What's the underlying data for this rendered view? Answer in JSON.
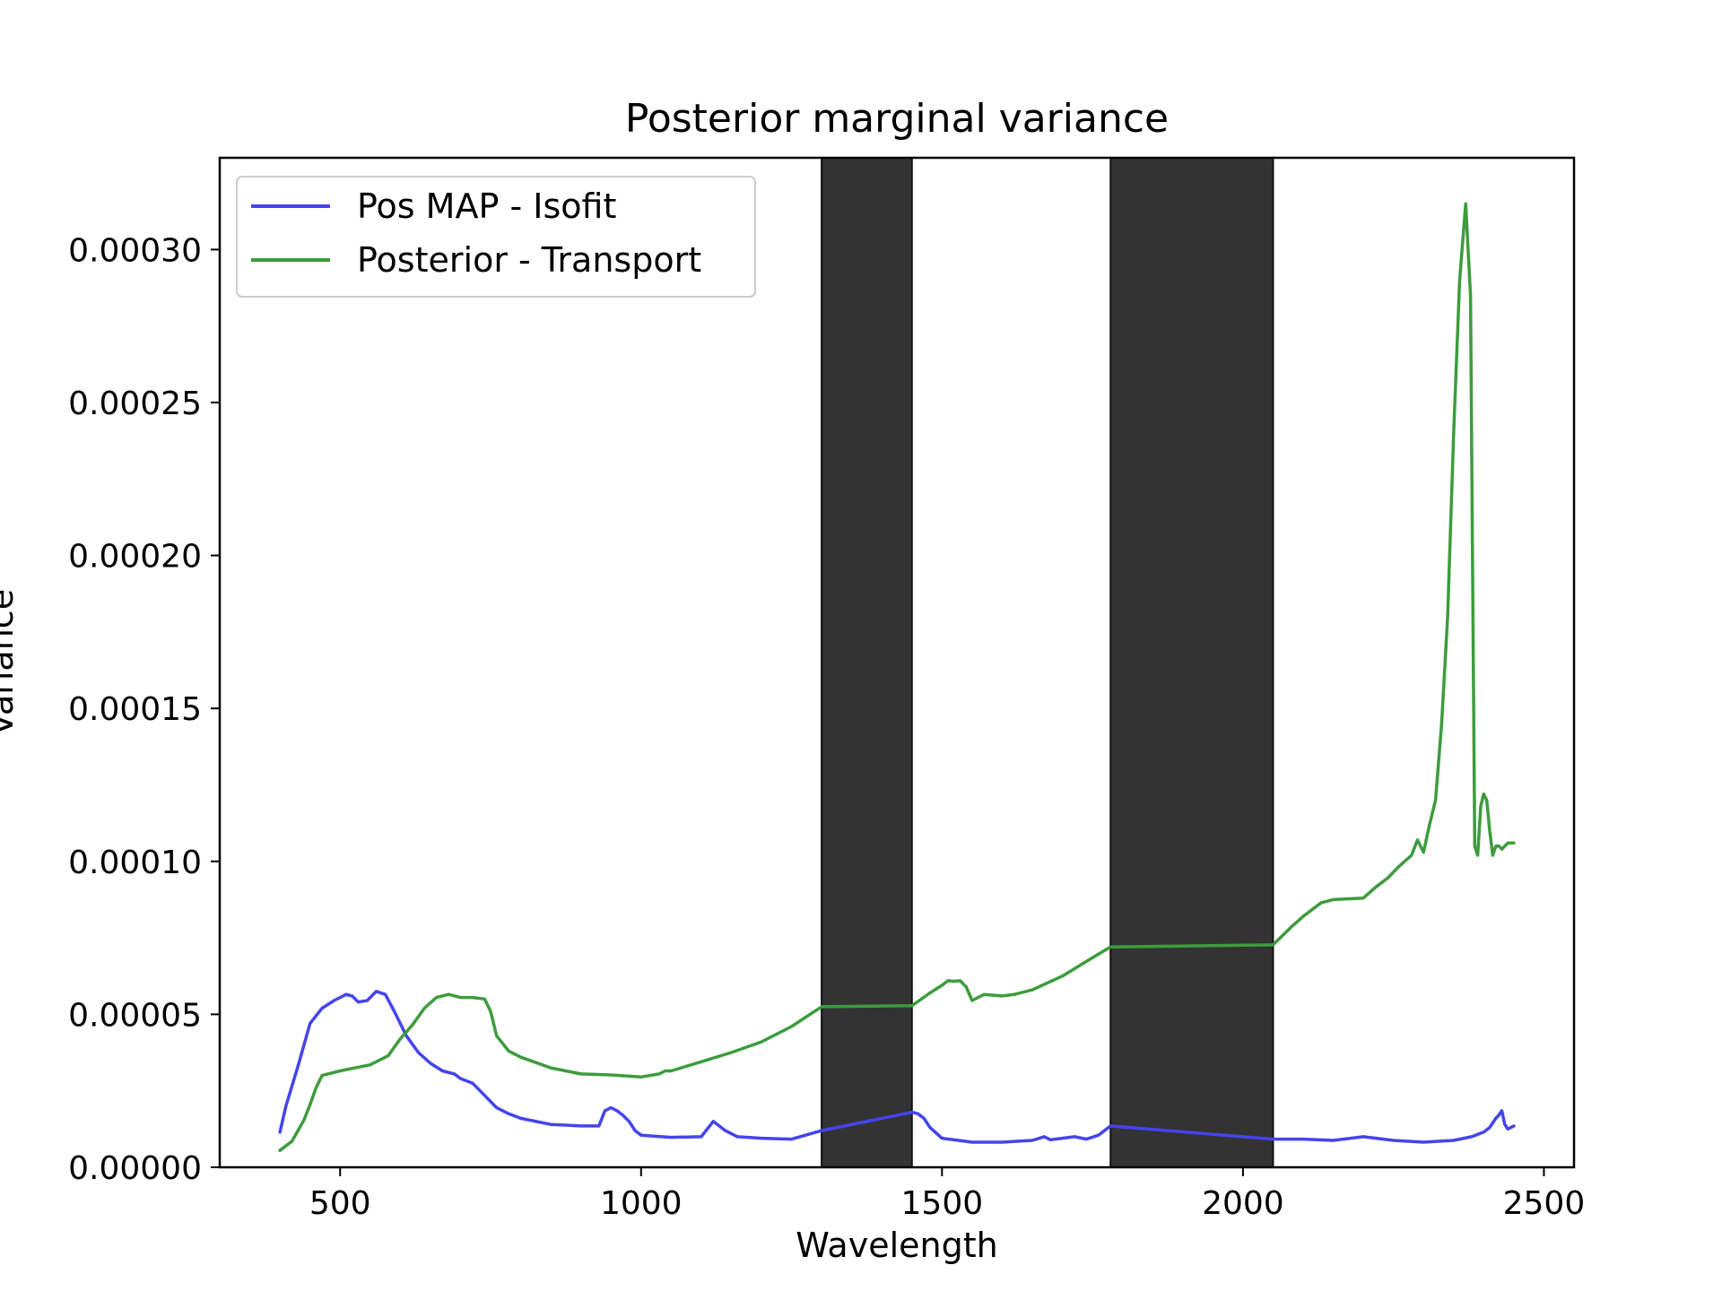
{
  "chart_data": {
    "type": "line",
    "title": "Posterior marginal variance",
    "xlabel": "Wavelength",
    "ylabel": "Variance",
    "xlim": [
      300,
      2550
    ],
    "ylim": [
      0,
      0.00033
    ],
    "x_ticks": [
      500,
      1000,
      1500,
      2000,
      2500
    ],
    "x_tick_labels": [
      "500",
      "1000",
      "1500",
      "2000",
      "2500"
    ],
    "y_ticks": [
      0,
      5e-05,
      0.0001,
      0.00015,
      0.0002,
      0.00025,
      0.0003
    ],
    "y_tick_labels": [
      "0.00000",
      "0.00005",
      "0.00010",
      "0.00015",
      "0.00020",
      "0.00025",
      "0.00030"
    ],
    "grid": false,
    "legend_position": "top-left",
    "shaded_regions": [
      {
        "x0": 1300,
        "x1": 1450,
        "color": "#333333"
      },
      {
        "x0": 1780,
        "x1": 2050,
        "color": "#333333"
      }
    ],
    "series": [
      {
        "name": "Pos MAP - Isofit",
        "color": "#4444ee",
        "x": [
          400,
          410,
          430,
          450,
          470,
          490,
          510,
          520,
          530,
          545,
          560,
          575,
          590,
          610,
          630,
          650,
          670,
          690,
          700,
          720,
          740,
          760,
          780,
          800,
          850,
          900,
          930,
          940,
          950,
          960,
          970,
          980,
          990,
          1000,
          1050,
          1100,
          1110,
          1120,
          1130,
          1140,
          1160,
          1200,
          1250,
          1300,
          1450,
          1460,
          1470,
          1480,
          1500,
          1550,
          1600,
          1650,
          1670,
          1680,
          1700,
          1720,
          1740,
          1760,
          1780,
          2050,
          2100,
          2150,
          2200,
          2250,
          2300,
          2350,
          2380,
          2400,
          2410,
          2420,
          2425,
          2430,
          2435,
          2440,
          2450
        ],
        "values": [
          1.15e-05,
          2e-05,
          3.3e-05,
          4.7e-05,
          5.2e-05,
          5.45e-05,
          5.65e-05,
          5.6e-05,
          5.4e-05,
          5.45e-05,
          5.75e-05,
          5.65e-05,
          5.1e-05,
          4.3e-05,
          3.75e-05,
          3.4e-05,
          3.15e-05,
          3.05e-05,
          2.9e-05,
          2.75e-05,
          2.35e-05,
          1.95e-05,
          1.75e-05,
          1.6e-05,
          1.4e-05,
          1.35e-05,
          1.35e-05,
          1.85e-05,
          1.95e-05,
          1.85e-05,
          1.7e-05,
          1.5e-05,
          1.2e-05,
          1.05e-05,
          9.8e-06,
          1e-05,
          1.25e-05,
          1.5e-05,
          1.35e-05,
          1.2e-05,
          1e-05,
          9.5e-06,
          9.2e-06,
          1.2e-05,
          1.8e-05,
          1.75e-05,
          1.6e-05,
          1.3e-05,
          9.5e-06,
          8.2e-06,
          8.2e-06,
          8.8e-06,
          1e-05,
          9e-06,
          9.5e-06,
          1e-05,
          9.2e-06,
          1.05e-05,
          1.35e-05,
          9.2e-06,
          9.2e-06,
          8.8e-06,
          1e-05,
          8.8e-06,
          8.2e-06,
          8.8e-06,
          1e-05,
          1.15e-05,
          1.3e-05,
          1.6e-05,
          1.7e-05,
          1.85e-05,
          1.4e-05,
          1.25e-05,
          1.35e-05
        ]
      },
      {
        "name": "Posterior - Transport",
        "color": "#3d9c3d",
        "x": [
          400,
          420,
          440,
          450,
          460,
          470,
          500,
          550,
          580,
          600,
          620,
          640,
          660,
          680,
          700,
          720,
          740,
          750,
          760,
          780,
          800,
          850,
          900,
          950,
          1000,
          1030,
          1040,
          1050,
          1100,
          1150,
          1200,
          1250,
          1300,
          1450,
          1480,
          1500,
          1510,
          1520,
          1530,
          1540,
          1550,
          1560,
          1570,
          1600,
          1620,
          1650,
          1700,
          1750,
          1780,
          2050,
          2080,
          2100,
          2130,
          2150,
          2200,
          2220,
          2240,
          2260,
          2280,
          2290,
          2300,
          2310,
          2320,
          2330,
          2340,
          2350,
          2360,
          2370,
          2378,
          2385,
          2390,
          2395,
          2400,
          2405,
          2410,
          2415,
          2420,
          2425,
          2430,
          2440,
          2450
        ],
        "values": [
          5.5e-06,
          8.5e-06,
          1.55e-05,
          2.05e-05,
          2.6e-05,
          3e-05,
          3.15e-05,
          3.35e-05,
          3.65e-05,
          4.2e-05,
          4.65e-05,
          5.2e-05,
          5.55e-05,
          5.65e-05,
          5.55e-05,
          5.55e-05,
          5.5e-05,
          5.1e-05,
          4.3e-05,
          3.8e-05,
          3.6e-05,
          3.25e-05,
          3.05e-05,
          3.02e-05,
          2.95e-05,
          3.05e-05,
          3.15e-05,
          3.15e-05,
          3.45e-05,
          3.75e-05,
          4.1e-05,
          4.6e-05,
          5.25e-05,
          5.28e-05,
          5.7e-05,
          5.95e-05,
          6.1e-05,
          6.08e-05,
          6.1e-05,
          5.9e-05,
          5.45e-05,
          5.55e-05,
          5.65e-05,
          5.6e-05,
          5.65e-05,
          5.8e-05,
          6.25e-05,
          6.85e-05,
          7.2e-05,
          7.27e-05,
          7.85e-05,
          8.2e-05,
          8.65e-05,
          8.75e-05,
          8.8e-05,
          9.15e-05,
          9.45e-05,
          9.85e-05,
          0.000102,
          0.000107,
          0.000103,
          0.000112,
          0.00012,
          0.000145,
          0.00018,
          0.00024,
          0.00029,
          0.000315,
          0.000285,
          0.000105,
          0.000102,
          0.000118,
          0.000122,
          0.00012,
          0.00011,
          0.000102,
          0.000105,
          0.000105,
          0.000104,
          0.000106,
          0.000106
        ]
      }
    ]
  }
}
